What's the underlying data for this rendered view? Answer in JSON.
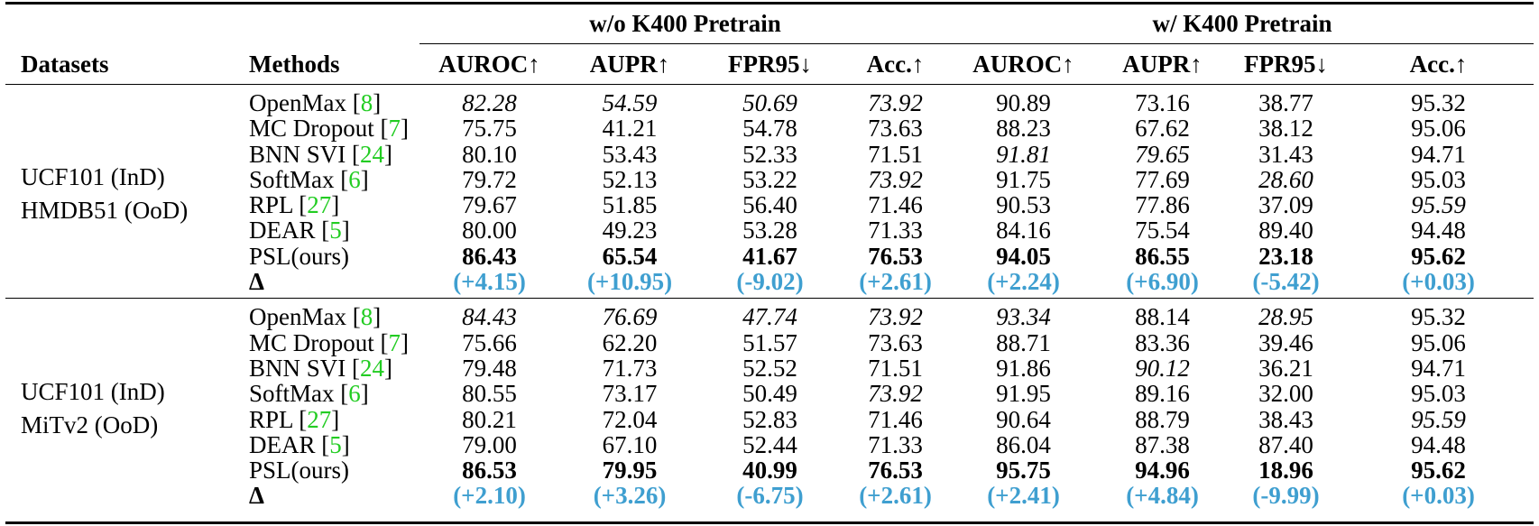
{
  "header": {
    "group_left": "w/o K400 Pretrain",
    "group_right": "w/ K400 Pretrain",
    "datasets_label": "Datasets",
    "methods_label": "Methods",
    "metrics": [
      "AUROC↑",
      "AUPR↑",
      "FPR95↓",
      "Acc.↑",
      "AUROC↑",
      "AUPR↑",
      "FPR95↓",
      "Acc.↑"
    ]
  },
  "delta_label": "Δ",
  "blocks": [
    {
      "dataset_line1": "UCF101 (InD)",
      "dataset_line2": "HMDB51 (OoD)",
      "rows": [
        {
          "name": "OpenMax",
          "ref": "8",
          "values": [
            "82.28",
            "54.59",
            "50.69",
            "73.92",
            "90.89",
            "73.16",
            "38.77",
            "95.32"
          ],
          "styles": [
            "i",
            "i",
            "i",
            "i",
            "",
            "",
            "",
            ""
          ]
        },
        {
          "name": "MC Dropout",
          "ref": "7",
          "values": [
            "75.75",
            "41.21",
            "54.78",
            "73.63",
            "88.23",
            "67.62",
            "38.12",
            "95.06"
          ],
          "styles": [
            "",
            "",
            "",
            "",
            "",
            "",
            "",
            ""
          ]
        },
        {
          "name": "BNN SVI",
          "ref": "24",
          "values": [
            "80.10",
            "53.43",
            "52.33",
            "71.51",
            "91.81",
            "79.65",
            "31.43",
            "94.71"
          ],
          "styles": [
            "",
            "",
            "",
            "",
            "i",
            "i",
            "",
            ""
          ]
        },
        {
          "name": "SoftMax",
          "ref": "6",
          "values": [
            "79.72",
            "52.13",
            "53.22",
            "73.92",
            "91.75",
            "77.69",
            "28.60",
            "95.03"
          ],
          "styles": [
            "",
            "",
            "",
            "i",
            "",
            "",
            "i",
            ""
          ]
        },
        {
          "name": "RPL",
          "ref": "27",
          "values": [
            "79.67",
            "51.85",
            "56.40",
            "71.46",
            "90.53",
            "77.86",
            "37.09",
            "95.59"
          ],
          "styles": [
            "",
            "",
            "",
            "",
            "",
            "",
            "",
            "i"
          ]
        },
        {
          "name": "DEAR",
          "ref": "5",
          "values": [
            "80.00",
            "49.23",
            "53.28",
            "71.33",
            "84.16",
            "75.54",
            "89.40",
            "94.48"
          ],
          "styles": [
            "",
            "",
            "",
            "",
            "",
            "",
            "",
            ""
          ]
        },
        {
          "name": "PSL(ours)",
          "ref": "",
          "values": [
            "86.43",
            "65.54",
            "41.67",
            "76.53",
            "94.05",
            "86.55",
            "23.18",
            "95.62"
          ],
          "styles": [
            "b",
            "b",
            "b",
            "b",
            "b",
            "b",
            "b",
            "b"
          ]
        }
      ],
      "deltas": [
        "(+4.15)",
        "(+10.95)",
        "(-9.02)",
        "(+2.61)",
        "(+2.24)",
        "(+6.90)",
        "(-5.42)",
        "(+0.03)"
      ]
    },
    {
      "dataset_line1": "UCF101 (InD)",
      "dataset_line2": "MiTv2 (OoD)",
      "rows": [
        {
          "name": "OpenMax",
          "ref": "8",
          "values": [
            "84.43",
            "76.69",
            "47.74",
            "73.92",
            "93.34",
            "88.14",
            "28.95",
            "95.32"
          ],
          "styles": [
            "i",
            "i",
            "i",
            "i",
            "i",
            "",
            "i",
            ""
          ]
        },
        {
          "name": "MC Dropout",
          "ref": "7",
          "values": [
            "75.66",
            "62.20",
            "51.57",
            "73.63",
            "88.71",
            "83.36",
            "39.46",
            "95.06"
          ],
          "styles": [
            "",
            "",
            "",
            "",
            "",
            "",
            "",
            ""
          ]
        },
        {
          "name": "BNN SVI",
          "ref": "24",
          "values": [
            "79.48",
            "71.73",
            "52.52",
            "71.51",
            "91.86",
            "90.12",
            "36.21",
            "94.71"
          ],
          "styles": [
            "",
            "",
            "",
            "",
            "",
            "i",
            "",
            ""
          ]
        },
        {
          "name": "SoftMax",
          "ref": "6",
          "values": [
            "80.55",
            "73.17",
            "50.49",
            "73.92",
            "91.95",
            "89.16",
            "32.00",
            "95.03"
          ],
          "styles": [
            "",
            "",
            "",
            "i",
            "",
            "",
            "",
            ""
          ]
        },
        {
          "name": "RPL",
          "ref": "27",
          "values": [
            "80.21",
            "72.04",
            "52.83",
            "71.46",
            "90.64",
            "88.79",
            "38.43",
            "95.59"
          ],
          "styles": [
            "",
            "",
            "",
            "",
            "",
            "",
            "",
            "i"
          ]
        },
        {
          "name": "DEAR",
          "ref": "5",
          "values": [
            "79.00",
            "67.10",
            "52.44",
            "71.33",
            "86.04",
            "87.38",
            "87.40",
            "94.48"
          ],
          "styles": [
            "",
            "",
            "",
            "",
            "",
            "",
            "",
            ""
          ]
        },
        {
          "name": "PSL(ours)",
          "ref": "",
          "values": [
            "86.53",
            "79.95",
            "40.99",
            "76.53",
            "95.75",
            "94.96",
            "18.96",
            "95.62"
          ],
          "styles": [
            "b",
            "b",
            "b",
            "b",
            "b",
            "b",
            "b",
            "b"
          ]
        }
      ],
      "deltas": [
        "(+2.10)",
        "(+3.26)",
        "(-6.75)",
        "(+2.61)",
        "(+2.41)",
        "(+4.84)",
        "(-9.99)",
        "(+0.03)"
      ]
    }
  ],
  "colors": {
    "ref_link": "#22cc22",
    "delta": "#3f9fd0"
  }
}
